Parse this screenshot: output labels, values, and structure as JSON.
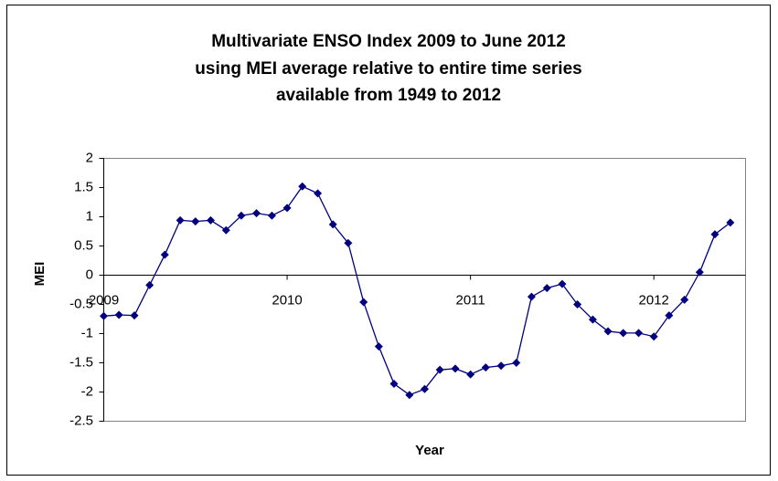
{
  "chart_data": {
    "type": "line",
    "title": [
      "Multivariate ENSO Index 2009 to June 2012",
      "using MEI average relative to entire time series",
      "available from 1949 to 2012"
    ],
    "x_label": "Year",
    "y_label": "MEI",
    "x": [
      2009,
      2009.083,
      2009.167,
      2009.25,
      2009.333,
      2009.417,
      2009.5,
      2009.583,
      2009.667,
      2009.75,
      2009.833,
      2009.917,
      2010,
      2010.083,
      2010.167,
      2010.25,
      2010.333,
      2010.417,
      2010.5,
      2010.583,
      2010.667,
      2010.75,
      2010.833,
      2010.917,
      2011,
      2011.083,
      2011.167,
      2011.25,
      2011.333,
      2011.417,
      2011.5,
      2011.583,
      2011.667,
      2011.75,
      2011.833,
      2011.917,
      2012,
      2012.083,
      2012.167,
      2012.25,
      2012.333,
      2012.417
    ],
    "values": [
      -0.7,
      -0.68,
      -0.69,
      -0.17,
      0.35,
      0.94,
      0.92,
      0.94,
      0.77,
      1.02,
      1.06,
      1.02,
      1.15,
      1.52,
      1.4,
      0.87,
      0.55,
      -0.46,
      -1.22,
      -1.86,
      -2.05,
      -1.95,
      -1.62,
      -1.6,
      -1.7,
      -1.58,
      -1.55,
      -1.5,
      -0.37,
      -0.22,
      -0.15,
      -0.5,
      -0.76,
      -0.96,
      -0.99,
      -0.99,
      -1.05,
      -0.69,
      -0.42,
      0.05,
      0.7,
      0.9
    ],
    "color": "#000080",
    "xlim": [
      2009,
      2012.5
    ],
    "xticks": [
      2009,
      2010,
      2011,
      2012
    ],
    "ylim": [
      -2.5,
      2
    ],
    "yticks": [
      -2.5,
      -2,
      -1.5,
      -1,
      -0.5,
      0,
      0.5,
      1,
      1.5,
      2
    ]
  }
}
